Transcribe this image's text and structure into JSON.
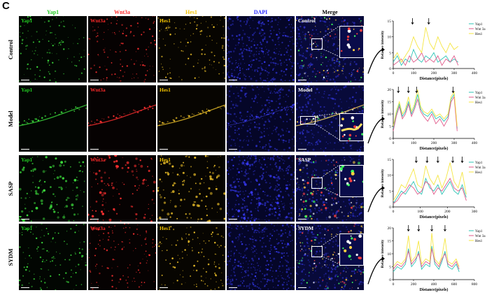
{
  "panel_letter": "C",
  "columns": [
    {
      "label": "Yap1",
      "color": "#22cc22"
    },
    {
      "label": "Wnt3a",
      "color": "#ff2a2a"
    },
    {
      "label": "Hes1",
      "color": "#f2c200"
    },
    {
      "label": "DAPI",
      "color": "#2a2aff"
    },
    {
      "label": "Merge",
      "color": "#000000"
    }
  ],
  "rows": [
    {
      "label": "Control",
      "merge_label": "Control"
    },
    {
      "label": "Model",
      "merge_label": "Model"
    },
    {
      "label": "SASP",
      "merge_label": "SASP"
    },
    {
      "label": "SYDM",
      "merge_label": "SYDM"
    }
  ],
  "tile_labels": {
    "yap1": "Yap1",
    "wnt3a": "Wnt3a",
    "hes1": "Hes1"
  },
  "chart_data": [
    {
      "type": "line",
      "xlabel": "Distance(pixels)",
      "ylabel": "Relative intensity",
      "xlim": [
        0,
        400
      ],
      "ylim": [
        0,
        15
      ],
      "xticks": [
        0,
        100,
        200,
        300,
        400
      ],
      "yticks": [
        0,
        5,
        10,
        15
      ],
      "legend": [
        "Yap1",
        "Wnt 3a",
        "Hes1"
      ],
      "legend_position": "top-right",
      "arrows_x": [
        95,
        175
      ],
      "series": [
        {
          "name": "Yap1",
          "color": "#2ec4b6",
          "x": [
            0,
            20,
            40,
            60,
            80,
            100,
            120,
            140,
            160,
            180,
            200,
            220,
            240,
            260,
            280,
            300,
            320
          ],
          "y": [
            2,
            4,
            1,
            3,
            2,
            6,
            3,
            2,
            4,
            3,
            5,
            2,
            3,
            4,
            2,
            3,
            2
          ]
        },
        {
          "name": "Wnt 3a",
          "color": "#e05a8a",
          "x": [
            0,
            20,
            40,
            60,
            80,
            100,
            120,
            140,
            160,
            180,
            200,
            220,
            240,
            260,
            280,
            300,
            320
          ],
          "y": [
            1,
            2,
            3,
            1,
            4,
            2,
            3,
            5,
            2,
            3,
            2,
            4,
            1,
            3,
            2,
            4,
            1
          ]
        },
        {
          "name": "Hes1",
          "color": "#f5e642",
          "x": [
            0,
            20,
            40,
            60,
            80,
            100,
            120,
            140,
            160,
            180,
            200,
            220,
            240,
            260,
            280,
            300,
            320
          ],
          "y": [
            3,
            5,
            2,
            4,
            6,
            10,
            7,
            5,
            13,
            8,
            6,
            10,
            7,
            5,
            8,
            6,
            7
          ]
        }
      ]
    },
    {
      "type": "line",
      "xlabel": "Distance(pixels)",
      "ylabel": "Relative intensity",
      "xlim": [
        0,
        400
      ],
      "ylim": [
        0,
        20
      ],
      "xticks": [
        0,
        100,
        200,
        300,
        400
      ],
      "yticks": [
        0,
        5,
        10,
        15,
        20
      ],
      "legend": [
        "Yap1",
        "Wnt 3a",
        "Hes1"
      ],
      "legend_position": "top-right",
      "arrows_x": [
        25,
        75,
        115,
        295
      ],
      "series": [
        {
          "name": "Yap1",
          "color": "#2ec4b6",
          "x": [
            0,
            15,
            30,
            45,
            60,
            75,
            90,
            105,
            120,
            135,
            150,
            170,
            190,
            210,
            230,
            250,
            270,
            285,
            300,
            315
          ],
          "y": [
            4,
            10,
            14,
            9,
            11,
            15,
            10,
            13,
            18,
            12,
            10,
            9,
            11,
            8,
            9,
            7,
            9,
            16,
            18,
            4
          ]
        },
        {
          "name": "Wnt 3a",
          "color": "#e05a8a",
          "x": [
            0,
            15,
            30,
            45,
            60,
            75,
            90,
            105,
            120,
            135,
            150,
            170,
            190,
            210,
            230,
            250,
            270,
            285,
            300,
            315
          ],
          "y": [
            3,
            9,
            13,
            8,
            10,
            14,
            9,
            12,
            16,
            11,
            9,
            7,
            10,
            6,
            8,
            5,
            8,
            15,
            17,
            3
          ]
        },
        {
          "name": "Hes1",
          "color": "#f5e642",
          "x": [
            0,
            15,
            30,
            45,
            60,
            75,
            90,
            105,
            120,
            135,
            150,
            170,
            190,
            210,
            230,
            250,
            270,
            285,
            300,
            315
          ],
          "y": [
            5,
            11,
            15,
            10,
            12,
            17,
            11,
            14,
            20,
            13,
            11,
            10,
            12,
            9,
            10,
            8,
            10,
            17,
            19,
            5
          ]
        }
      ]
    },
    {
      "type": "line",
      "xlabel": "Distance(pixels)",
      "ylabel": "Relative intensity",
      "xlim": [
        0,
        300
      ],
      "ylim": [
        0,
        15
      ],
      "xticks": [
        0,
        100,
        200,
        300
      ],
      "yticks": [
        0,
        5,
        10,
        15
      ],
      "legend": [
        "Yap1",
        "Wnt 3a",
        "Hes1"
      ],
      "legend_position": "top-right",
      "arrows_x": [
        85,
        125,
        165,
        220,
        255
      ],
      "series": [
        {
          "name": "Yap1",
          "color": "#2ec4b6",
          "x": [
            0,
            15,
            30,
            45,
            60,
            75,
            90,
            105,
            120,
            135,
            150,
            165,
            180,
            195,
            210,
            225,
            240,
            255,
            270
          ],
          "y": [
            1,
            3,
            5,
            4,
            6,
            8,
            5,
            4,
            9,
            6,
            5,
            7,
            4,
            6,
            8,
            5,
            4,
            7,
            3
          ]
        },
        {
          "name": "Wnt 3a",
          "color": "#e05a8a",
          "x": [
            0,
            15,
            30,
            45,
            60,
            75,
            90,
            105,
            120,
            135,
            150,
            165,
            180,
            195,
            210,
            225,
            240,
            255,
            270
          ],
          "y": [
            1,
            2,
            4,
            5,
            7,
            6,
            4,
            5,
            8,
            7,
            4,
            6,
            5,
            7,
            9,
            6,
            5,
            6,
            2
          ]
        },
        {
          "name": "Hes1",
          "color": "#f5e642",
          "x": [
            0,
            15,
            30,
            45,
            60,
            75,
            90,
            105,
            120,
            135,
            150,
            165,
            180,
            195,
            210,
            225,
            240,
            255,
            270
          ],
          "y": [
            2,
            4,
            7,
            6,
            9,
            12,
            7,
            6,
            13,
            9,
            7,
            10,
            6,
            9,
            14,
            8,
            6,
            11,
            4
          ]
        }
      ]
    },
    {
      "type": "line",
      "xlabel": "Distance(pixels)",
      "ylabel": "Relative intensity",
      "xlim": [
        0,
        800
      ],
      "ylim": [
        0,
        20
      ],
      "xticks": [
        0,
        200,
        400,
        600,
        800
      ],
      "yticks": [
        0,
        5,
        10,
        15,
        20
      ],
      "legend": [
        "Yap1",
        "Wnt 3a",
        "Hes1"
      ],
      "legend_position": "top-right",
      "arrows_x": [
        150,
        250,
        380,
        510
      ],
      "series": [
        {
          "name": "Yap1",
          "color": "#2ec4b6",
          "x": [
            0,
            40,
            80,
            120,
            150,
            180,
            220,
            250,
            280,
            320,
            360,
            380,
            410,
            450,
            480,
            510,
            540,
            580,
            620,
            650
          ],
          "y": [
            3,
            5,
            4,
            6,
            12,
            5,
            7,
            11,
            4,
            6,
            5,
            13,
            6,
            4,
            7,
            11,
            5,
            4,
            6,
            3
          ]
        },
        {
          "name": "Wnt 3a",
          "color": "#e05a8a",
          "x": [
            0,
            40,
            80,
            120,
            150,
            180,
            220,
            250,
            280,
            320,
            360,
            380,
            410,
            450,
            480,
            510,
            540,
            580,
            620,
            650
          ],
          "y": [
            4,
            6,
            5,
            7,
            11,
            6,
            8,
            10,
            5,
            7,
            6,
            12,
            7,
            5,
            8,
            10,
            6,
            5,
            7,
            4
          ]
        },
        {
          "name": "Hes1",
          "color": "#f5e642",
          "x": [
            0,
            40,
            80,
            120,
            150,
            180,
            220,
            250,
            280,
            320,
            360,
            380,
            410,
            450,
            480,
            510,
            540,
            580,
            620,
            650
          ],
          "y": [
            5,
            7,
            6,
            8,
            17,
            7,
            9,
            15,
            6,
            8,
            7,
            18,
            8,
            6,
            9,
            16,
            7,
            6,
            8,
            5
          ]
        }
      ]
    }
  ]
}
